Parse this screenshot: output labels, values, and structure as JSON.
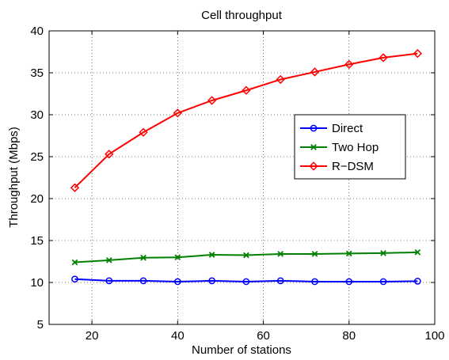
{
  "chart_data": {
    "type": "line",
    "title": "Cell throughput",
    "xlabel": "Number of stations",
    "ylabel": "Throughput (Mbps)",
    "xlim": [
      10,
      100
    ],
    "ylim": [
      5,
      40
    ],
    "xticks": [
      20,
      40,
      60,
      80,
      100
    ],
    "yticks": [
      5,
      10,
      15,
      20,
      25,
      30,
      35,
      40
    ],
    "grid": true,
    "legend_position": "right",
    "x": [
      16,
      24,
      32,
      40,
      48,
      56,
      64,
      72,
      80,
      88,
      96
    ],
    "series": [
      {
        "name": "Direct",
        "color": "#0000ff",
        "marker": "circle",
        "values": [
          10.4,
          10.2,
          10.2,
          10.1,
          10.2,
          10.1,
          10.2,
          10.1,
          10.1,
          10.1,
          10.15
        ]
      },
      {
        "name": "Two Hop",
        "color": "#008000",
        "marker": "x",
        "values": [
          12.4,
          12.65,
          12.95,
          13.0,
          13.3,
          13.25,
          13.4,
          13.4,
          13.45,
          13.5,
          13.6
        ]
      },
      {
        "name": "R−DSM",
        "color": "#ff0000",
        "marker": "diamond",
        "values": [
          21.3,
          25.3,
          27.9,
          30.2,
          31.7,
          32.9,
          34.2,
          35.1,
          36.0,
          36.8,
          37.3
        ]
      }
    ]
  }
}
